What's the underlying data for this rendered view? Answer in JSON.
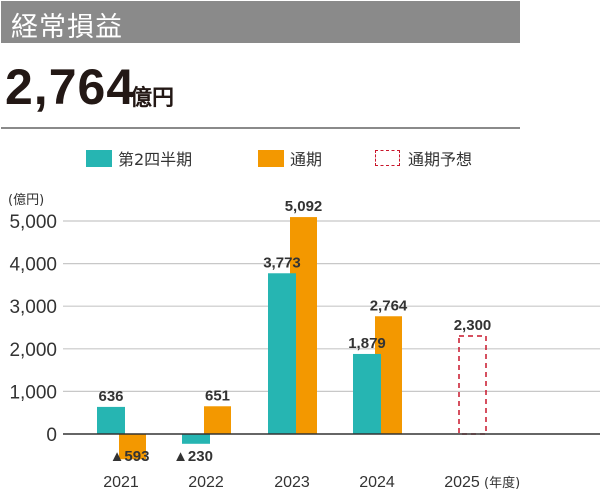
{
  "header": {
    "title": "経常損益",
    "headline_value": "2,764",
    "headline_unit": "億円"
  },
  "chart_data": {
    "type": "bar",
    "title": "経常損益",
    "ylabel": "(億円)",
    "xlabel": "(年度)",
    "categories": [
      "2021",
      "2022",
      "2023",
      "2024",
      "2025"
    ],
    "ylim": [
      -600,
      5000
    ],
    "yticks": [
      0,
      1000,
      2000,
      3000,
      4000,
      5000
    ],
    "ytick_labels": [
      "0",
      "1,000",
      "2,000",
      "3,000",
      "4,000",
      "5,000"
    ],
    "grid": true,
    "legend_position": "top",
    "series": [
      {
        "name": "第2四半期",
        "color": "#26b5b2",
        "values": [
          636,
          -230,
          3773,
          1879,
          null
        ],
        "labels": [
          "636",
          "▲230",
          "3,773",
          "1,879",
          ""
        ]
      },
      {
        "name": "通期",
        "color": "#f39800",
        "values": [
          -593,
          651,
          5092,
          2764,
          null
        ],
        "labels": [
          "▲593",
          "651",
          "5,092",
          "2,764",
          ""
        ]
      },
      {
        "name": "通期予想",
        "color": "#c9162b",
        "style": "dashed",
        "values": [
          null,
          null,
          null,
          null,
          2300
        ],
        "labels": [
          "",
          "",
          "",
          "",
          "2,300"
        ]
      }
    ]
  }
}
